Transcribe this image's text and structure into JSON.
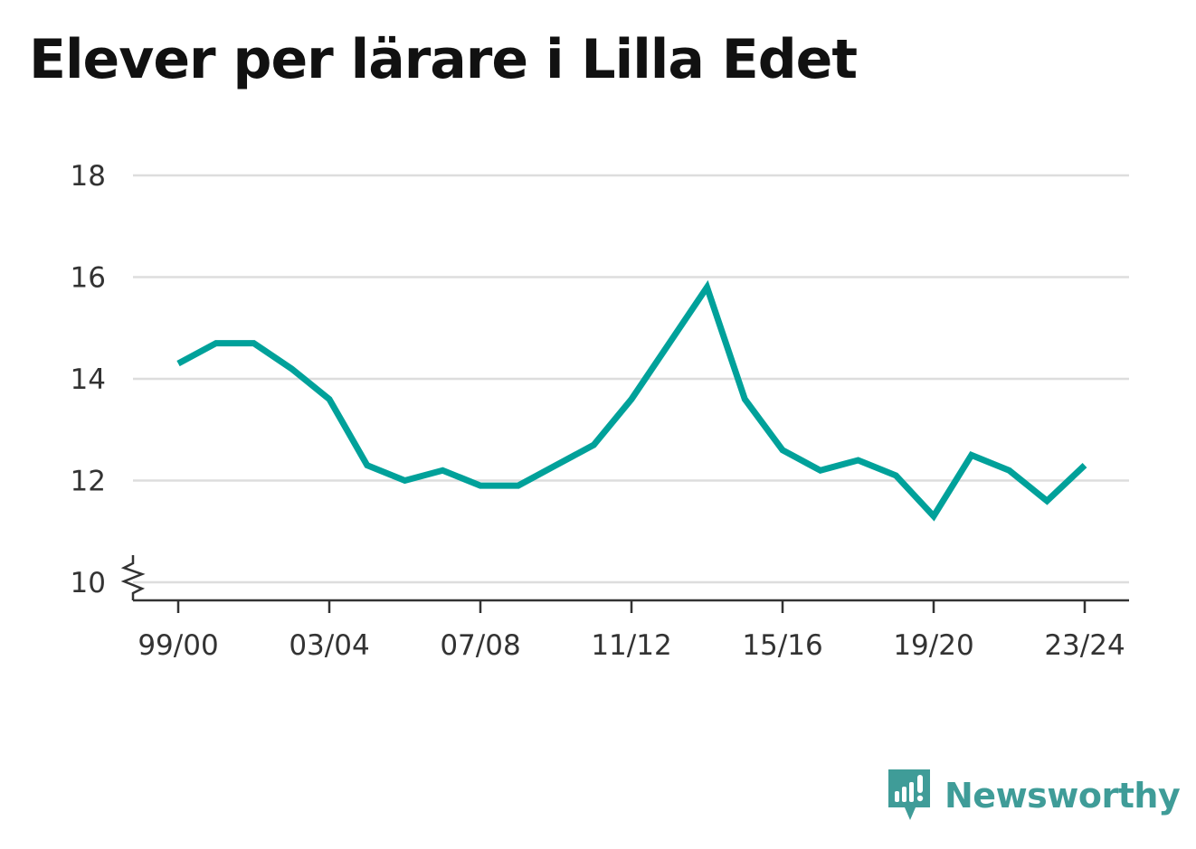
{
  "title": "Elever per lärare i Lilla Edet",
  "brand": {
    "name": "Newsworthy",
    "icon": "newsworthy-logo-icon",
    "color": "#3f9c98"
  },
  "colors": {
    "line": "#00a19a",
    "grid": "#dddddd",
    "axis": "#333333"
  },
  "chart_data": {
    "type": "line",
    "title": "Elever per lärare i Lilla Edet",
    "xlabel": "",
    "ylabel": "",
    "x": [
      "99/00",
      "00/01",
      "01/02",
      "02/03",
      "03/04",
      "04/05",
      "05/06",
      "06/07",
      "07/08",
      "08/09",
      "09/10",
      "10/11",
      "11/12",
      "12/13",
      "13/14",
      "14/15",
      "15/16",
      "16/17",
      "17/18",
      "18/19",
      "19/20",
      "20/21",
      "21/22",
      "22/23",
      "23/24"
    ],
    "x_tick_labels": [
      "99/00",
      "03/04",
      "07/08",
      "11/12",
      "15/16",
      "19/20",
      "23/24"
    ],
    "series": [
      {
        "values": [
          14.3,
          14.7,
          14.7,
          14.2,
          13.6,
          12.3,
          12.0,
          12.2,
          11.9,
          11.9,
          12.3,
          12.7,
          13.6,
          14.7,
          15.8,
          13.6,
          12.6,
          12.2,
          12.4,
          12.1,
          11.3,
          12.5,
          12.2,
          11.6,
          12.3
        ]
      }
    ],
    "ylim": [
      10,
      18
    ],
    "y_ticks": [
      10,
      12,
      14,
      16,
      18
    ],
    "y_axis_break": true,
    "grid": true,
    "legend": "none"
  }
}
